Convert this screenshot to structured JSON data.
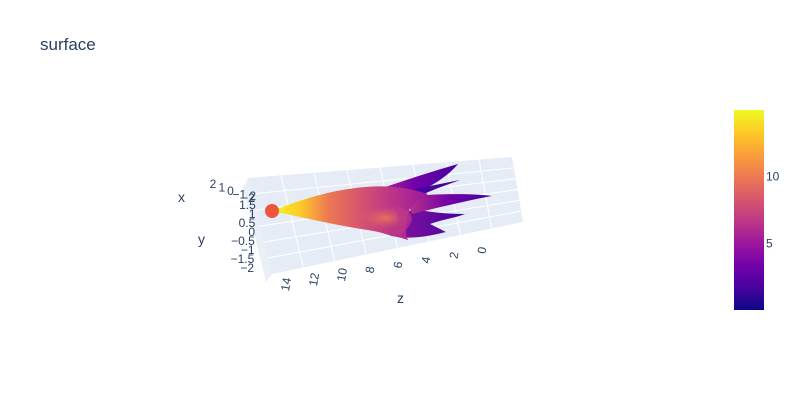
{
  "chart_data": {
    "type": "surface",
    "title": "surface",
    "colorscale": "plasma",
    "colors": {
      "plasma": [
        "#0d0887",
        "#46039f",
        "#7201a8",
        "#9c179e",
        "#bd3786",
        "#d8576b",
        "#ed7953",
        "#fb9f3a",
        "#fdca26",
        "#f0f921"
      ],
      "scene_background": "#e5ecf6",
      "marker": "#ef553b",
      "text": "#2a3f5f"
    },
    "axes": {
      "x": {
        "title": "x",
        "range": [
          -2,
          2
        ],
        "tick_labels": [
          "2",
          "1",
          "0",
          "−1",
          "−2"
        ]
      },
      "y": {
        "title": "y",
        "range": [
          -2,
          2
        ],
        "tick_labels": [
          "2",
          "1.5",
          "1",
          "0.5",
          "0",
          "−0.5",
          "−1",
          "−1.5",
          "−2"
        ]
      },
      "z": {
        "title": "z",
        "range": [
          0,
          15
        ],
        "tick_labels": [
          "14",
          "12",
          "10",
          "8",
          "6",
          "4",
          "2",
          "0"
        ]
      }
    },
    "colorbar": {
      "range": [
        0,
        15
      ],
      "tick_labels": [
        "5",
        "10"
      ]
    },
    "marker": {
      "x": 0,
      "y": 0,
      "z": 15
    }
  }
}
